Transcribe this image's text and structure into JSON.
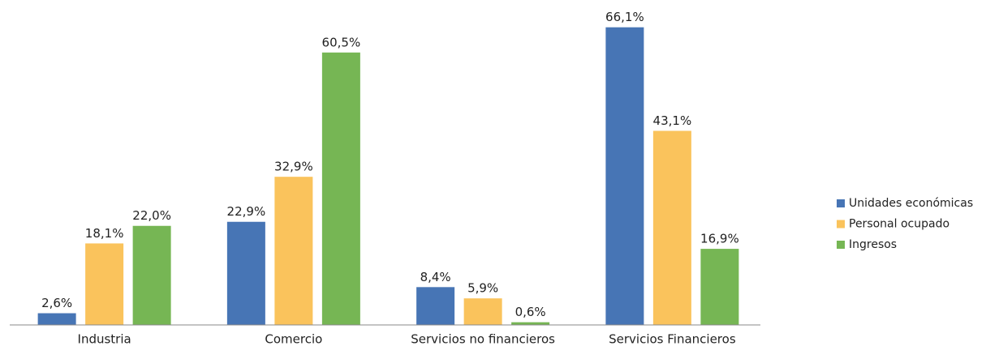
{
  "chart_data": {
    "type": "bar",
    "categories": [
      "Industria",
      "Comercio",
      "Servicios no financieros",
      "Servicios Financieros"
    ],
    "series": [
      {
        "name": "Unidades económicas",
        "color": "#4775b5",
        "values": [
          2.6,
          22.9,
          8.4,
          66.1
        ],
        "value_labels": [
          "2,6%",
          "22,9%",
          "8,4%",
          "66,1%"
        ]
      },
      {
        "name": "Personal ocupado",
        "color": "#fac35c",
        "values": [
          18.1,
          32.9,
          5.9,
          43.1
        ],
        "value_labels": [
          "18,1%",
          "32,9%",
          "5,9%",
          "43,1%"
        ]
      },
      {
        "name": "Ingresos",
        "color": "#76b654",
        "values": [
          22.0,
          60.5,
          0.6,
          16.9
        ],
        "value_labels": [
          "22,0%",
          "60,5%",
          "0,6%",
          "16,9%"
        ]
      }
    ],
    "ylim": [
      0,
      70
    ],
    "legend": "right"
  }
}
